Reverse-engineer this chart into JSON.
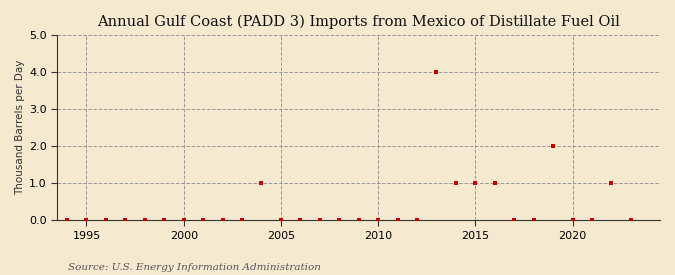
{
  "title": "Annual Gulf Coast (PADD 3) Imports from Mexico of Distillate Fuel Oil",
  "ylabel": "Thousand Barrels per Day",
  "source": "Source: U.S. Energy Information Administration",
  "background_color": "#f5ead0",
  "plot_background_color": "#f5ead0",
  "xlim": [
    1993.5,
    2024.5
  ],
  "ylim": [
    0.0,
    5.0
  ],
  "yticks": [
    0.0,
    1.0,
    2.0,
    3.0,
    4.0,
    5.0
  ],
  "xticks": [
    1995,
    2000,
    2005,
    2010,
    2015,
    2020
  ],
  "data": {
    "1994": 0.0,
    "1995": 0.0,
    "1996": 0.0,
    "1997": 0.0,
    "1998": 0.0,
    "1999": 0.0,
    "2000": 0.0,
    "2001": 0.0,
    "2002": 0.0,
    "2003": 0.0,
    "2004": 1.0,
    "2005": 0.0,
    "2006": 0.0,
    "2007": 0.0,
    "2008": 0.0,
    "2009": 0.0,
    "2010": 0.0,
    "2011": 0.0,
    "2012": 0.0,
    "2013": 4.0,
    "2014": 1.0,
    "2015": 1.0,
    "2016": 1.0,
    "2017": 0.0,
    "2018": 0.0,
    "2019": 2.0,
    "2020": 0.0,
    "2021": 0.0,
    "2022": 1.0,
    "2023": 0.0
  },
  "marker_color": "#cc0000",
  "marker_size": 3.5,
  "grid_color": "#999999",
  "title_fontsize": 10.5,
  "label_fontsize": 7.5,
  "tick_fontsize": 8,
  "source_fontsize": 7.5
}
